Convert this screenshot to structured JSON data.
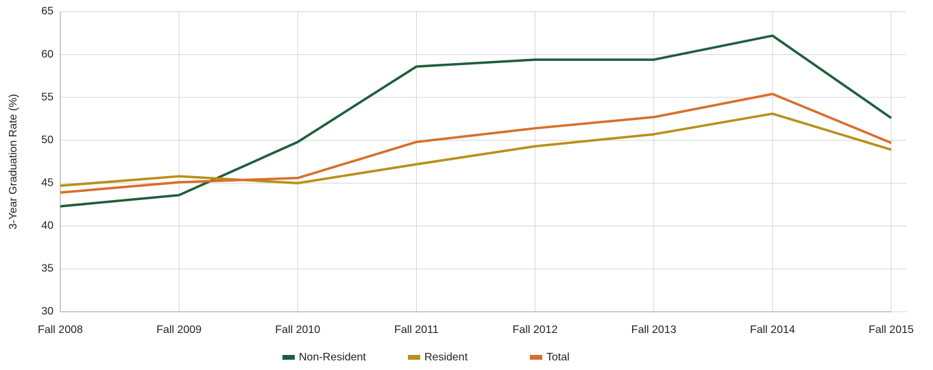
{
  "chart_data": {
    "type": "line",
    "y_label": "3-Year Graduation Rate (%)",
    "categories": [
      "Fall 2008",
      "Fall 2009",
      "Fall 2010",
      "Fall 2011",
      "Fall 2012",
      "Fall 2013",
      "Fall 2014",
      "Fall 2015"
    ],
    "series": [
      {
        "name": "Non-Resident",
        "color": "#1e5e3b",
        "values": [
          42.3,
          43.6,
          49.8,
          58.6,
          59.4,
          59.4,
          62.2,
          52.6
        ]
      },
      {
        "name": "Resident",
        "color": "#b8901a",
        "values": [
          44.7,
          45.8,
          45.0,
          47.2,
          49.3,
          50.7,
          53.1,
          48.9
        ]
      },
      {
        "name": "Total",
        "color": "#d86f2a",
        "values": [
          43.9,
          45.1,
          45.6,
          49.8,
          51.4,
          52.7,
          55.4,
          49.7
        ]
      }
    ],
    "ylim": [
      30,
      65
    ],
    "yticks": [
      30,
      35,
      40,
      45,
      50,
      55,
      60,
      65
    ],
    "grid": true,
    "legend": "bottom"
  }
}
